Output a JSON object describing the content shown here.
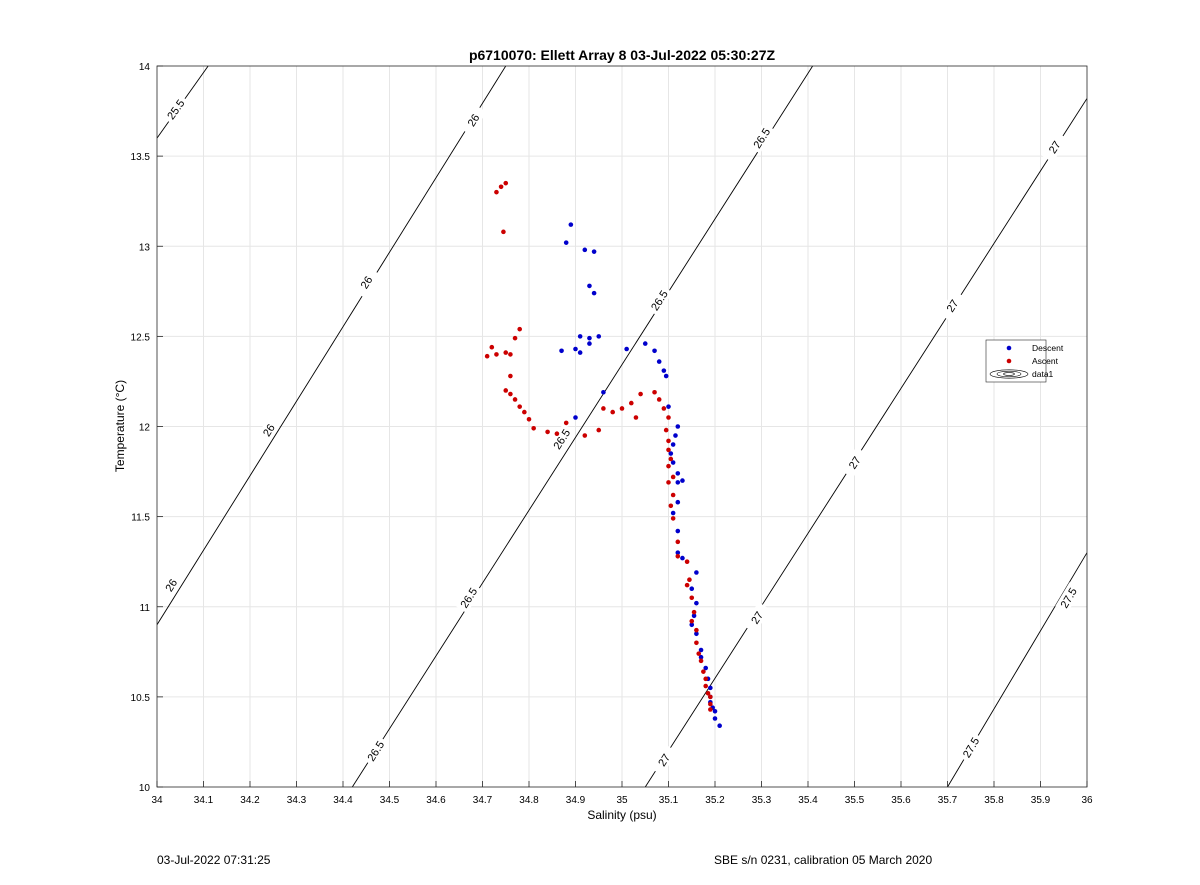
{
  "chart_data": {
    "type": "scatter",
    "title": "p6710070: Ellett Array 8 03-Jul-2022 05:30:27Z",
    "xlabel": "Salinity (psu)",
    "ylabel": "Temperature (°C)",
    "xlim": [
      34,
      36
    ],
    "ylim": [
      10,
      14
    ],
    "xticks": [
      "34",
      "34.1",
      "34.2",
      "34.3",
      "34.4",
      "34.5",
      "34.6",
      "34.7",
      "34.8",
      "34.9",
      "35",
      "35.1",
      "35.2",
      "35.3",
      "35.4",
      "35.5",
      "35.6",
      "35.7",
      "35.8",
      "35.9",
      "36"
    ],
    "yticks": [
      "10",
      "10.5",
      "11",
      "11.5",
      "12",
      "12.5",
      "13",
      "13.5",
      "14"
    ],
    "grid": true,
    "legend_position": "right",
    "legend": [
      "Descent",
      "Ascent",
      "data1"
    ],
    "colors": {
      "descent": "#0000cc",
      "ascent": "#cc0000",
      "contour": "#000000",
      "grid": "#e6e6e6"
    },
    "contours": [
      {
        "level": 25.5,
        "label": "25.5",
        "points": [
          [
            34.0,
            13.6
          ],
          [
            34.11,
            14.0
          ]
        ],
        "labels": [
          {
            "x": 34.04,
            "y": 13.76,
            "text": "25.5"
          }
        ]
      },
      {
        "level": 26.0,
        "label": "26",
        "points": [
          [
            34.0,
            10.9
          ],
          [
            34.75,
            14.0
          ]
        ],
        "labels": [
          {
            "x": 34.68,
            "y": 13.7,
            "text": "26"
          },
          {
            "x": 34.45,
            "y": 12.8,
            "text": "26"
          },
          {
            "x": 34.24,
            "y": 11.98,
            "text": "26"
          },
          {
            "x": 34.03,
            "y": 11.12,
            "text": "26"
          }
        ]
      },
      {
        "level": 26.5,
        "label": "26.5",
        "points": [
          [
            34.42,
            10.0
          ],
          [
            35.41,
            14.0
          ]
        ],
        "labels": [
          {
            "x": 35.3,
            "y": 13.6,
            "text": "26.5"
          },
          {
            "x": 35.08,
            "y": 12.7,
            "text": "26.5"
          },
          {
            "x": 34.87,
            "y": 11.93,
            "text": "26.5"
          },
          {
            "x": 34.67,
            "y": 11.05,
            "text": "26.5"
          },
          {
            "x": 34.47,
            "y": 10.2,
            "text": "26.5"
          }
        ]
      },
      {
        "level": 27.0,
        "label": "27",
        "points": [
          [
            35.05,
            10.0
          ],
          [
            36.0,
            13.82
          ]
        ],
        "labels": [
          {
            "x": 35.93,
            "y": 13.55,
            "text": "27"
          },
          {
            "x": 35.71,
            "y": 12.67,
            "text": "27"
          },
          {
            "x": 35.5,
            "y": 11.8,
            "text": "27"
          },
          {
            "x": 35.29,
            "y": 10.94,
            "text": "27"
          },
          {
            "x": 35.09,
            "y": 10.15,
            "text": "27"
          }
        ]
      },
      {
        "level": 27.5,
        "label": "27.5",
        "points": [
          [
            35.7,
            10.0
          ],
          [
            36.0,
            11.3
          ]
        ],
        "labels": [
          {
            "x": 35.96,
            "y": 11.05,
            "text": "27.5"
          },
          {
            "x": 35.75,
            "y": 10.22,
            "text": "27.5"
          }
        ]
      }
    ],
    "series": [
      {
        "name": "Descent",
        "points": [
          [
            34.89,
            13.12
          ],
          [
            34.88,
            13.02
          ],
          [
            34.92,
            12.98
          ],
          [
            34.94,
            12.97
          ],
          [
            34.93,
            12.78
          ],
          [
            34.94,
            12.74
          ],
          [
            34.87,
            12.42
          ],
          [
            34.91,
            12.5
          ],
          [
            34.93,
            12.49
          ],
          [
            34.95,
            12.5
          ],
          [
            34.93,
            12.46
          ],
          [
            34.9,
            12.43
          ],
          [
            34.91,
            12.41
          ],
          [
            35.05,
            12.46
          ],
          [
            35.07,
            12.42
          ],
          [
            35.01,
            12.43
          ],
          [
            35.08,
            12.36
          ],
          [
            35.09,
            12.31
          ],
          [
            35.095,
            12.28
          ],
          [
            34.96,
            12.19
          ],
          [
            34.9,
            12.05
          ],
          [
            35.1,
            12.11
          ],
          [
            35.12,
            12.0
          ],
          [
            35.115,
            11.95
          ],
          [
            35.11,
            11.9
          ],
          [
            35.105,
            11.85
          ],
          [
            35.11,
            11.8
          ],
          [
            35.12,
            11.74
          ],
          [
            35.13,
            11.7
          ],
          [
            35.12,
            11.69
          ],
          [
            35.12,
            11.58
          ],
          [
            35.11,
            11.52
          ],
          [
            35.12,
            11.42
          ],
          [
            35.12,
            11.3
          ],
          [
            35.13,
            11.27
          ],
          [
            35.16,
            11.19
          ],
          [
            35.15,
            11.1
          ],
          [
            35.16,
            11.02
          ],
          [
            35.155,
            10.95
          ],
          [
            35.15,
            10.9
          ],
          [
            35.16,
            10.85
          ],
          [
            35.17,
            10.76
          ],
          [
            35.17,
            10.72
          ],
          [
            35.18,
            10.66
          ],
          [
            35.185,
            10.6
          ],
          [
            35.19,
            10.55
          ],
          [
            35.19,
            10.5
          ],
          [
            35.19,
            10.47
          ],
          [
            35.195,
            10.44
          ],
          [
            35.2,
            10.42
          ],
          [
            35.2,
            10.38
          ],
          [
            35.21,
            10.34
          ]
        ]
      },
      {
        "name": "Ascent",
        "points": [
          [
            34.75,
            13.35
          ],
          [
            34.74,
            13.33
          ],
          [
            34.73,
            13.3
          ],
          [
            34.745,
            13.08
          ],
          [
            34.72,
            12.44
          ],
          [
            34.73,
            12.4
          ],
          [
            34.71,
            12.39
          ],
          [
            34.75,
            12.41
          ],
          [
            34.76,
            12.4
          ],
          [
            34.78,
            12.54
          ],
          [
            34.77,
            12.49
          ],
          [
            34.76,
            12.28
          ],
          [
            34.75,
            12.2
          ],
          [
            34.76,
            12.18
          ],
          [
            34.77,
            12.15
          ],
          [
            34.78,
            12.11
          ],
          [
            34.79,
            12.08
          ],
          [
            34.8,
            12.04
          ],
          [
            34.81,
            11.99
          ],
          [
            34.84,
            11.97
          ],
          [
            34.86,
            11.96
          ],
          [
            34.88,
            12.02
          ],
          [
            34.92,
            11.95
          ],
          [
            34.95,
            11.98
          ],
          [
            34.96,
            12.1
          ],
          [
            34.98,
            12.08
          ],
          [
            35.0,
            12.1
          ],
          [
            35.02,
            12.13
          ],
          [
            35.04,
            12.18
          ],
          [
            35.07,
            12.19
          ],
          [
            35.08,
            12.15
          ],
          [
            35.03,
            12.05
          ],
          [
            35.09,
            12.1
          ],
          [
            35.1,
            12.05
          ],
          [
            35.095,
            11.98
          ],
          [
            35.1,
            11.92
          ],
          [
            35.1,
            11.87
          ],
          [
            35.105,
            11.82
          ],
          [
            35.1,
            11.78
          ],
          [
            35.11,
            11.72
          ],
          [
            35.1,
            11.69
          ],
          [
            35.11,
            11.62
          ],
          [
            35.105,
            11.56
          ],
          [
            35.11,
            11.49
          ],
          [
            35.12,
            11.36
          ],
          [
            35.12,
            11.28
          ],
          [
            35.14,
            11.25
          ],
          [
            35.145,
            11.15
          ],
          [
            35.14,
            11.12
          ],
          [
            35.15,
            11.05
          ],
          [
            35.155,
            10.97
          ],
          [
            35.15,
            10.92
          ],
          [
            35.16,
            10.87
          ],
          [
            35.16,
            10.8
          ],
          [
            35.165,
            10.74
          ],
          [
            35.17,
            10.7
          ],
          [
            35.175,
            10.64
          ],
          [
            35.18,
            10.6
          ],
          [
            35.18,
            10.56
          ],
          [
            35.185,
            10.52
          ],
          [
            35.19,
            10.5
          ],
          [
            35.19,
            10.46
          ],
          [
            35.19,
            10.43
          ]
        ]
      }
    ]
  },
  "footer": {
    "left": "03-Jul-2022 07:31:25",
    "right": "SBE s/n 0231, calibration 05 March 2020"
  }
}
